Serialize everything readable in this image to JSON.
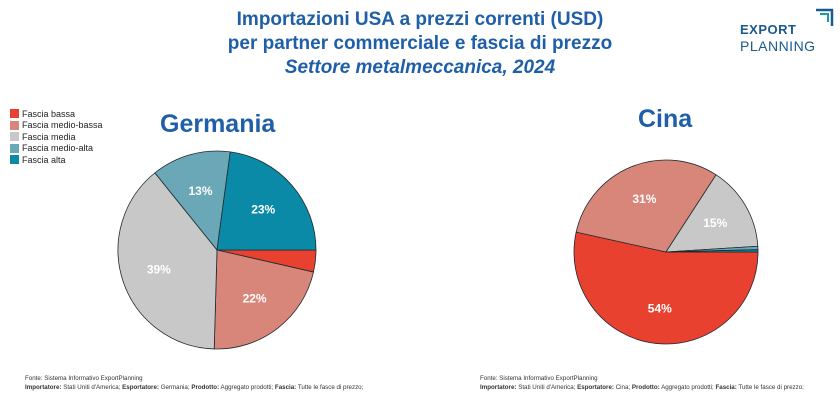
{
  "header": {
    "title_line1": "Importazioni USA a prezzi correnti (USD)",
    "title_line2": "per partner commerciale e fascia di prezzo",
    "subtitle": "Settore metalmeccanica, 2024"
  },
  "logo": {
    "word1": "EXPORT",
    "word2": "PLANNING",
    "color": "#1a5a8c",
    "accent": "#1a9aaa"
  },
  "legend": [
    {
      "label": "Fascia bassa",
      "color": "#e8412f"
    },
    {
      "label": "Fascia medio-bassa",
      "color": "#d9867a"
    },
    {
      "label": "Fascia media",
      "color": "#c8c8c8"
    },
    {
      "label": "Fascia medio-alta",
      "color": "#6aa8b8"
    },
    {
      "label": "Fascia alta",
      "color": "#0b8aa8"
    }
  ],
  "chart_data": [
    {
      "type": "pie",
      "title": "Germania",
      "categories": [
        "Fascia bassa",
        "Fascia medio-bassa",
        "Fascia media",
        "Fascia medio-alta",
        "Fascia alta"
      ],
      "values": [
        3.6,
        22,
        39,
        13,
        23
      ],
      "labels": [
        "",
        "22%",
        "39%",
        "13%",
        "23%"
      ]
    },
    {
      "type": "pie",
      "title": "Cina",
      "categories": [
        "Fascia bassa",
        "Fascia medio-bassa",
        "Fascia media",
        "Fascia medio-alta",
        "Fascia alta"
      ],
      "values": [
        54,
        31,
        15,
        0.6,
        0.4
      ],
      "labels": [
        "54%",
        "31%",
        "15%",
        "",
        ""
      ]
    }
  ],
  "footer_left": {
    "source": "Fonte: Sistema Informativo ExportPlanning",
    "importer_label": "Importatore:",
    "importer_value": "Stati Uniti d'America;",
    "exporter_label": "Esportatore:",
    "exporter_value": "Germania;",
    "product_label": "Prodotto:",
    "product_value": "Aggregato prodotti;",
    "band_label": "Fascia:",
    "band_value": "Tutte le fasce di prezzo;"
  },
  "footer_right": {
    "source": "Fonte: Sistema Informativo ExportPlanning",
    "importer_label": "Importatore:",
    "importer_value": "Stati Uniti d'America;",
    "exporter_label": "Esportatore:",
    "exporter_value": "Cina;",
    "product_label": "Prodotto:",
    "product_value": "Aggregato prodotti;",
    "band_label": "Fascia:",
    "band_value": "Tutte le fasce di prezzo;"
  }
}
